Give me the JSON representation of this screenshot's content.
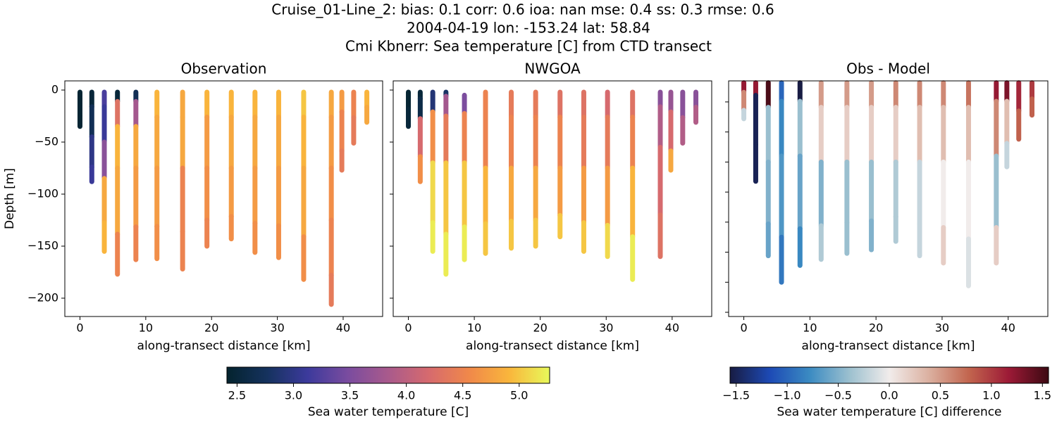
{
  "figure_title": [
    "Cruise_01-Line_2: bias: 0.1  corr: 0.6  ioa: nan  mse: 0.4  ss: 0.3  rmse: 0.6",
    "2004-04-19 lon: -153.24 lat: 58.84",
    "Cmi Kbnerr: Sea temperature [C] from CTD transect"
  ],
  "chart_data": [
    {
      "type": "scatter",
      "title": "Observation",
      "xlabel": "along-transect distance [km]",
      "ylabel": "Depth [m]",
      "xlim": [
        -2.3,
        46
      ],
      "ylim": [
        -217.6,
        8.8
      ],
      "xticks": [
        0,
        10,
        20,
        30,
        40
      ],
      "yticks": [
        0,
        {
          "value": -50,
          "label": "−50"
        },
        {
          "value": -100,
          "label": "−100"
        },
        {
          "value": -150,
          "label": "−150"
        },
        {
          "value": -200,
          "label": "−200"
        }
      ],
      "show_ytick_labels": true,
      "clim": [
        2.41,
        5.27
      ],
      "colormap": [
        "#04232e",
        "#15325e",
        "#3c3a9c",
        "#7a4c9f",
        "#a95a8c",
        "#d66a6e",
        "#f0884a",
        "#f9b63c",
        "#e8f95a"
      ],
      "stations": [
        {
          "distance": 0,
          "depth": [
            -2,
            -15,
            -35
          ],
          "values": [
            2.45,
            2.45,
            2.45
          ]
        },
        {
          "distance": 1.8,
          "depth": [
            -2,
            -30,
            -60,
            -88
          ],
          "values": [
            2.5,
            2.7,
            3.0,
            3.1
          ]
        },
        {
          "distance": 3.7,
          "depth": [
            -2,
            -30,
            -70,
            -100,
            -155
          ],
          "values": [
            3.2,
            3.1,
            3.6,
            4.8,
            4.9
          ]
        },
        {
          "distance": 5.7,
          "depth": [
            -2,
            -20,
            -50,
            -100,
            -177
          ],
          "values": [
            2.5,
            4.3,
            4.9,
            4.8,
            4.5
          ]
        },
        {
          "distance": 8.5,
          "depth": [
            -2,
            -20,
            -50,
            -100,
            -163
          ],
          "values": [
            2.7,
            3.8,
            4.8,
            4.7,
            4.5
          ]
        },
        {
          "distance": 11.7,
          "depth": [
            -2,
            -50,
            -100,
            -162
          ],
          "values": [
            4.9,
            4.8,
            4.7,
            4.6
          ]
        },
        {
          "distance": 15.6,
          "depth": [
            -2,
            -50,
            -100,
            -172
          ],
          "values": [
            4.8,
            4.8,
            4.5,
            4.5
          ]
        },
        {
          "distance": 19.3,
          "depth": [
            -2,
            -50,
            -100,
            -150
          ],
          "values": [
            4.9,
            4.7,
            4.6,
            4.5
          ]
        },
        {
          "distance": 23,
          "depth": [
            -2,
            -50,
            -100,
            -143
          ],
          "values": [
            4.9,
            4.8,
            4.7,
            4.6
          ]
        },
        {
          "distance": 26.6,
          "depth": [
            -2,
            -50,
            -100,
            -156
          ],
          "values": [
            4.9,
            4.8,
            4.7,
            4.6
          ]
        },
        {
          "distance": 30.2,
          "depth": [
            -2,
            -50,
            -100,
            -161
          ],
          "values": [
            4.9,
            4.8,
            4.7,
            4.6
          ]
        },
        {
          "distance": 34,
          "depth": [
            -2,
            -50,
            -100,
            -182
          ],
          "values": [
            5.0,
            4.9,
            4.8,
            4.6
          ]
        },
        {
          "distance": 38.2,
          "depth": [
            -2,
            -50,
            -100,
            -150,
            -206
          ],
          "values": [
            4.8,
            4.7,
            4.6,
            4.5,
            4.4
          ]
        },
        {
          "distance": 39.8,
          "depth": [
            -2,
            -40,
            -77
          ],
          "values": [
            4.7,
            4.5,
            4.4
          ]
        },
        {
          "distance": 41.6,
          "depth": [
            -2,
            -51
          ],
          "values": [
            4.5,
            4.4
          ]
        },
        {
          "distance": 43.6,
          "depth": [
            -2,
            -31
          ],
          "values": [
            4.9,
            4.8
          ]
        }
      ]
    },
    {
      "type": "scatter",
      "title": "NWGOA",
      "xlabel": "along-transect distance [km]",
      "xlim": [
        -2.3,
        46
      ],
      "ylim": [
        -217.6,
        8.8
      ],
      "xticks": [
        0,
        10,
        20,
        30,
        40
      ],
      "yticks": [
        0,
        -50,
        -100,
        -150,
        -200
      ],
      "show_ytick_labels": false,
      "clim": [
        2.41,
        5.27
      ],
      "colormap": [
        "#04232e",
        "#15325e",
        "#3c3a9c",
        "#7a4c9f",
        "#a95a8c",
        "#d66a6e",
        "#f0884a",
        "#f9b63c",
        "#e8f95a"
      ],
      "stations": [
        {
          "distance": 0,
          "depth": [
            -2,
            -35
          ],
          "values": [
            2.45,
            2.5
          ]
        },
        {
          "distance": 1.8,
          "depth": [
            -2,
            -15,
            -40,
            -88
          ],
          "values": [
            2.5,
            2.6,
            4.2,
            4.6
          ]
        },
        {
          "distance": 3.7,
          "depth": [
            -2,
            -40,
            -100,
            -155
          ],
          "values": [
            2.9,
            4.6,
            5.1,
            5.2
          ]
        },
        {
          "distance": 5.7,
          "depth": [
            -2,
            -10,
            -40,
            -100,
            -177
          ],
          "values": [
            2.8,
            3.8,
            4.4,
            5.0,
            5.2
          ]
        },
        {
          "distance": 8.5,
          "depth": [
            -5,
            -40,
            -100,
            -163
          ],
          "values": [
            3.5,
            4.5,
            5.0,
            5.2
          ]
        },
        {
          "distance": 11.7,
          "depth": [
            -2,
            -50,
            -100,
            -157
          ],
          "values": [
            4.5,
            4.5,
            4.9,
            5.0
          ]
        },
        {
          "distance": 15.6,
          "depth": [
            -2,
            -50,
            -100,
            -152
          ],
          "values": [
            4.4,
            4.5,
            4.8,
            5.0
          ]
        },
        {
          "distance": 19.3,
          "depth": [
            -2,
            -50,
            -100,
            -150
          ],
          "values": [
            4.4,
            4.5,
            4.8,
            5.0
          ]
        },
        {
          "distance": 23,
          "depth": [
            -2,
            -50,
            -100,
            -141
          ],
          "values": [
            4.3,
            4.5,
            4.7,
            5.0
          ]
        },
        {
          "distance": 26.6,
          "depth": [
            -2,
            -50,
            -100,
            -155
          ],
          "values": [
            4.3,
            4.4,
            4.7,
            5.0
          ]
        },
        {
          "distance": 30.2,
          "depth": [
            -2,
            -50,
            -100,
            -160
          ],
          "values": [
            4.2,
            4.4,
            4.7,
            5.1
          ]
        },
        {
          "distance": 34,
          "depth": [
            -2,
            -50,
            -100,
            -182
          ],
          "values": [
            4.3,
            4.5,
            4.9,
            5.2
          ]
        },
        {
          "distance": 38.2,
          "depth": [
            -2,
            -30,
            -80,
            -160
          ],
          "values": [
            3.6,
            3.9,
            4.2,
            4.3
          ]
        },
        {
          "distance": 39.8,
          "depth": [
            -2,
            -40,
            -77
          ],
          "values": [
            3.7,
            4.2,
            4.8
          ]
        },
        {
          "distance": 41.6,
          "depth": [
            -2,
            -51
          ],
          "values": [
            3.6,
            3.9
          ]
        },
        {
          "distance": 43.6,
          "depth": [
            -2,
            -31
          ],
          "values": [
            3.6,
            3.9
          ]
        }
      ]
    },
    {
      "type": "scatter",
      "title": "Obs - Model",
      "xlabel": "along-transect distance [km]",
      "xlim": [
        -2.3,
        46
      ],
      "ylim": [
        -203.5,
        -7.5
      ],
      "xticks": [
        0,
        10,
        20,
        30,
        40
      ],
      "yticks": [
        -25,
        -50,
        -75,
        -100,
        -125,
        -150,
        -175,
        -200
      ],
      "show_ytick_labels": false,
      "clim": [
        -1.56,
        1.56
      ],
      "colormap": [
        "#181c43",
        "#1d4ab5",
        "#3b8bc2",
        "#9cc0cf",
        "#f1eceb",
        "#dbb0a0",
        "#c2654e",
        "#9c1a36",
        "#3c0912"
      ],
      "stations": [
        {
          "distance": 0,
          "depth": [
            -9,
            -25,
            -39
          ],
          "values": [
            1.2,
            0.6,
            -0.2
          ]
        },
        {
          "distance": 1.8,
          "depth": [
            -9,
            -30,
            -91
          ],
          "values": [
            1.2,
            -1.5,
            -1.5
          ]
        },
        {
          "distance": 3.7,
          "depth": [
            -9,
            -50,
            -100,
            -153
          ],
          "values": [
            1.5,
            -0.4,
            -0.5,
            -0.6
          ]
        },
        {
          "distance": 5.7,
          "depth": [
            -9,
            -40,
            -100,
            -175
          ],
          "values": [
            -1.0,
            -0.8,
            -0.7,
            -0.9
          ]
        },
        {
          "distance": 8.5,
          "depth": [
            -9,
            -40,
            -100,
            -161
          ],
          "values": [
            -1.6,
            -0.4,
            -0.6,
            -0.8
          ]
        },
        {
          "distance": 11.7,
          "depth": [
            -9,
            -50,
            -100,
            -156
          ],
          "values": [
            0.5,
            0.2,
            -0.5,
            -0.3
          ]
        },
        {
          "distance": 15.6,
          "depth": [
            -9,
            -50,
            -100,
            -151
          ],
          "values": [
            0.5,
            0.2,
            -0.4,
            -0.4
          ]
        },
        {
          "distance": 19.3,
          "depth": [
            -9,
            -50,
            -100,
            -148
          ],
          "values": [
            0.5,
            0.2,
            -0.4,
            -0.5
          ]
        },
        {
          "distance": 23,
          "depth": [
            -9,
            -50,
            -100,
            -141
          ],
          "values": [
            0.6,
            0.2,
            -0.3,
            -0.3
          ]
        },
        {
          "distance": 26.6,
          "depth": [
            -9,
            -50,
            -100,
            -153
          ],
          "values": [
            0.6,
            0.3,
            -0.2,
            -0.2
          ]
        },
        {
          "distance": 30.2,
          "depth": [
            -9,
            -50,
            -100,
            -159
          ],
          "values": [
            0.6,
            0.3,
            0.0,
            0.2
          ]
        },
        {
          "distance": 34,
          "depth": [
            -9,
            -50,
            -100,
            -178
          ],
          "values": [
            0.7,
            0.3,
            0.0,
            -0.1
          ]
        },
        {
          "distance": 38.2,
          "depth": [
            -9,
            -40,
            -100,
            -159
          ],
          "values": [
            1.2,
            0.6,
            -0.4,
            0.2
          ]
        },
        {
          "distance": 39.8,
          "depth": [
            -9,
            -40,
            -79
          ],
          "values": [
            1.3,
            0.3,
            -0.2
          ]
        },
        {
          "distance": 41.6,
          "depth": [
            -9,
            -56
          ],
          "values": [
            1.1,
            0.8
          ]
        },
        {
          "distance": 43.6,
          "depth": [
            -9,
            -36
          ],
          "values": [
            1.0,
            0.8
          ]
        }
      ]
    },
    {
      "type": "colorbar",
      "label": "Sea water temperature [C]",
      "xlim": [
        2.41,
        5.27
      ],
      "xticks": [
        2.5,
        {
          "value": 3,
          "label": "3.0"
        },
        3.5,
        {
          "value": 4,
          "label": "4.0"
        },
        4.5,
        {
          "value": 5,
          "label": "5.0"
        }
      ],
      "colormap": [
        "#04232e",
        "#15325e",
        "#3c3a9c",
        "#7a4c9f",
        "#a95a8c",
        "#d66a6e",
        "#f0884a",
        "#f9b63c",
        "#e8f95a"
      ]
    },
    {
      "type": "colorbar",
      "label": "Sea water temperature [C] difference",
      "xlim": [
        -1.56,
        1.56
      ],
      "xticks": [
        {
          "value": -1.5,
          "label": "−1.5"
        },
        {
          "value": -1,
          "label": "−1.0"
        },
        {
          "value": -0.5,
          "label": "−0.5"
        },
        {
          "value": 0,
          "label": "0.0"
        },
        0.5,
        {
          "value": 1,
          "label": "1.0"
        },
        1.5
      ],
      "colormap": [
        "#181c43",
        "#1d4ab5",
        "#3b8bc2",
        "#9cc0cf",
        "#f1eceb",
        "#dbb0a0",
        "#c2654e",
        "#9c1a36",
        "#3c0912"
      ]
    }
  ]
}
